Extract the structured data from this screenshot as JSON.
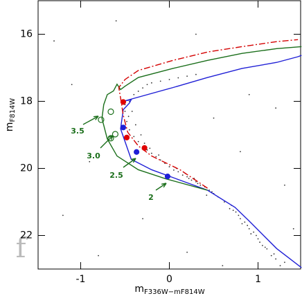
{
  "chart_data": {
    "type": "scatter",
    "xlabel": {
      "main": "m",
      "sub": "F336W−m",
      "sub2": "F814W"
    },
    "ylabel": {
      "main": "m",
      "sub": "F814W"
    },
    "panel": "f",
    "xlim": [
      -1.48,
      1.48
    ],
    "ylim": [
      23,
      15
    ],
    "xticks": [
      -1,
      0,
      1
    ],
    "yticks": [
      16,
      18,
      20,
      22
    ],
    "annotations": [
      "3.5",
      "3.0",
      "2.5",
      "2"
    ],
    "annotation_color": "#1a6e1a",
    "series": [
      {
        "kind": "points",
        "color": "#333333",
        "x": [
          0.62,
          0.68,
          0.75,
          0.8,
          0.85,
          0.9,
          0.95,
          1.0,
          1.05,
          1.1,
          1.15,
          1.2,
          1.25,
          0.7,
          0.78,
          0.88,
          0.98,
          1.08,
          1.18,
          1.3,
          0.82,
          0.92,
          1.02,
          0.72,
          0.55,
          0.5,
          0.45,
          0.4,
          0.35,
          0.3,
          0.25,
          0.2,
          0.15,
          0.1,
          0.05,
          0.0,
          0.48,
          0.38,
          0.28,
          0.18,
          0.08,
          0.42,
          0.32,
          0.22,
          -0.05,
          -0.1,
          -0.15,
          -0.2,
          -0.25,
          -0.3,
          -0.35,
          -0.4,
          -0.45,
          -0.48,
          -0.5,
          -0.5,
          -0.45,
          -0.42,
          -0.38,
          -0.32,
          -0.22,
          -0.12,
          -0.28,
          -0.46,
          -0.4,
          -0.35,
          -0.3,
          -0.25,
          -0.2,
          -0.1,
          0.0,
          0.1,
          0.2,
          0.3,
          -1.3,
          -1.1,
          -0.9,
          -1.2,
          -0.8,
          -0.3,
          0.2,
          0.5,
          0.8,
          1.2,
          1.3,
          0.9,
          0.3,
          -0.6,
          1.4,
          0.6
        ],
        "values": [
          21.0,
          21.2,
          21.3,
          21.5,
          21.6,
          21.8,
          21.9,
          22.1,
          22.3,
          22.4,
          22.6,
          22.7,
          22.9,
          21.1,
          21.4,
          21.7,
          22.0,
          22.35,
          22.55,
          22.8,
          21.65,
          21.95,
          22.2,
          21.25,
          20.85,
          20.75,
          20.65,
          20.55,
          20.5,
          20.4,
          20.35,
          20.25,
          20.2,
          20.1,
          20.05,
          19.95,
          20.7,
          20.6,
          20.3,
          20.15,
          20.0,
          20.8,
          20.45,
          20.3,
          19.85,
          19.75,
          19.65,
          19.55,
          19.45,
          19.35,
          19.2,
          19.05,
          18.85,
          18.6,
          18.3,
          18.1,
          18.0,
          18.3,
          18.7,
          19.0,
          19.4,
          19.6,
          19.25,
          18.45,
          17.8,
          17.7,
          17.6,
          17.5,
          17.45,
          17.4,
          17.35,
          17.3,
          17.25,
          17.2,
          16.2,
          17.5,
          19.8,
          21.4,
          22.6,
          21.5,
          22.5,
          18.5,
          19.5,
          18.2,
          20.5,
          17.8,
          16.0,
          15.6,
          21.8,
          22.9
        ]
      },
      {
        "kind": "line",
        "color": "#1f1fd6",
        "dash": false,
        "x": [
          1.49,
          1.21,
          0.9,
          0.74,
          0.43,
          0.12,
          -0.2,
          -0.43,
          -0.55,
          -0.52,
          -0.45,
          -0.43,
          -0.52,
          0.04,
          0.43,
          0.82,
          1.21,
          1.45,
          1.49
        ],
        "values": [
          22.96,
          22.39,
          21.57,
          21.16,
          20.65,
          20.35,
          20.04,
          19.73,
          18.82,
          18.25,
          18.05,
          17.95,
          18.0,
          17.59,
          17.29,
          17.02,
          16.84,
          16.67,
          16.63
        ]
      },
      {
        "kind": "line",
        "color": "#1a6e1a",
        "dash": false,
        "x": [
          0.43,
          -0.04,
          -0.35,
          -0.59,
          -0.7,
          -0.76,
          -0.74,
          -0.7,
          -0.63,
          -0.59,
          -0.55,
          -0.5,
          -0.35,
          0.04,
          0.43,
          0.82,
          1.21,
          1.49
        ],
        "values": [
          20.65,
          20.31,
          20.04,
          19.63,
          19.12,
          18.51,
          18.1,
          17.8,
          17.69,
          17.49,
          17.65,
          17.55,
          17.29,
          17.02,
          16.78,
          16.57,
          16.43,
          16.37
        ]
      },
      {
        "kind": "line",
        "color": "#d40000",
        "dash": true,
        "x": [
          0.43,
          0.12,
          -0.2,
          -0.35,
          -0.47,
          -0.52,
          -0.55,
          -0.57,
          -0.5,
          -0.35,
          0.04,
          0.43,
          0.82,
          1.21,
          1.45
        ],
        "values": [
          20.59,
          20.04,
          19.63,
          19.33,
          18.92,
          18.41,
          17.9,
          17.59,
          17.35,
          17.08,
          16.78,
          16.53,
          16.37,
          16.22,
          16.16
        ]
      },
      {
        "kind": "markers",
        "color": "#e00000",
        "open": false,
        "x": [
          -0.52,
          -0.48,
          -0.28
        ],
        "values": [
          18.02,
          19.08,
          19.39
        ]
      },
      {
        "kind": "markers",
        "color": "#1f1fd6",
        "open": false,
        "x": [
          -0.52,
          -0.37,
          -0.02
        ],
        "values": [
          18.78,
          19.51,
          20.24
        ]
      },
      {
        "kind": "markers",
        "color": "#1a6e1a",
        "open": true,
        "x": [
          -0.77,
          -0.66,
          -0.61,
          -0.66
        ],
        "values": [
          18.55,
          18.31,
          18.98,
          19.1
        ]
      }
    ]
  }
}
